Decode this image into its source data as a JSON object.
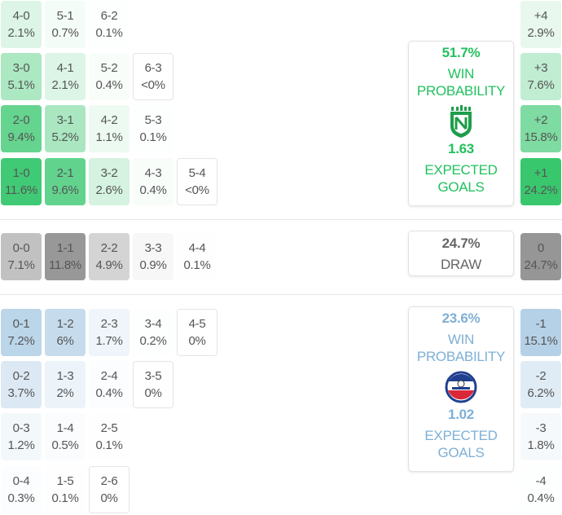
{
  "colors": {
    "home_accent": "#22c15e",
    "away_accent": "#7fb0d6",
    "draw_accent": "#666666"
  },
  "home": {
    "win_pct": "51.7%",
    "win_label_1": "WIN",
    "win_label_2": "PROBABILITY",
    "xg": "1.63",
    "xg_label_1": "EXPECTED",
    "xg_label_2": "GOALS",
    "logo_icon": "atletico-nacional-crest-icon"
  },
  "draw": {
    "pct": "24.7%",
    "label": "DRAW"
  },
  "away": {
    "win_pct": "23.6%",
    "win_label_1": "WIN",
    "win_label_2": "PROBABILITY",
    "xg": "1.02",
    "xg_label_1": "EXPECTED",
    "xg_label_2": "GOALS",
    "logo_icon": "alianza-club-crest-icon"
  },
  "home_rows": [
    [
      {
        "s": "4-0",
        "p": "2.1%"
      },
      {
        "s": "5-1",
        "p": "0.7%"
      },
      {
        "s": "6-2",
        "p": "0.1%"
      }
    ],
    [
      {
        "s": "3-0",
        "p": "5.1%"
      },
      {
        "s": "4-1",
        "p": "2.1%"
      },
      {
        "s": "5-2",
        "p": "0.4%"
      },
      {
        "s": "6-3",
        "p": "<0%"
      }
    ],
    [
      {
        "s": "2-0",
        "p": "9.4%"
      },
      {
        "s": "3-1",
        "p": "5.2%"
      },
      {
        "s": "4-2",
        "p": "1.1%"
      },
      {
        "s": "5-3",
        "p": "0.1%"
      }
    ],
    [
      {
        "s": "1-0",
        "p": "11.6%"
      },
      {
        "s": "2-1",
        "p": "9.6%"
      },
      {
        "s": "3-2",
        "p": "2.6%"
      },
      {
        "s": "4-3",
        "p": "0.4%"
      },
      {
        "s": "5-4",
        "p": "<0%"
      }
    ]
  ],
  "draw_row": [
    {
      "s": "0-0",
      "p": "7.1%"
    },
    {
      "s": "1-1",
      "p": "11.8%"
    },
    {
      "s": "2-2",
      "p": "4.9%"
    },
    {
      "s": "3-3",
      "p": "0.9%"
    },
    {
      "s": "4-4",
      "p": "0.1%"
    }
  ],
  "away_rows": [
    [
      {
        "s": "0-1",
        "p": "7.2%"
      },
      {
        "s": "1-2",
        "p": "6%"
      },
      {
        "s": "2-3",
        "p": "1.7%"
      },
      {
        "s": "3-4",
        "p": "0.2%"
      },
      {
        "s": "4-5",
        "p": "0%"
      }
    ],
    [
      {
        "s": "0-2",
        "p": "3.7%"
      },
      {
        "s": "1-3",
        "p": "2%"
      },
      {
        "s": "2-4",
        "p": "0.4%"
      },
      {
        "s": "3-5",
        "p": "0%"
      }
    ],
    [
      {
        "s": "0-3",
        "p": "1.2%"
      },
      {
        "s": "1-4",
        "p": "0.5%"
      },
      {
        "s": "2-5",
        "p": "0.1%"
      }
    ],
    [
      {
        "s": "0-4",
        "p": "0.3%"
      },
      {
        "s": "1-5",
        "p": "0.1%"
      },
      {
        "s": "2-6",
        "p": "0%"
      }
    ]
  ],
  "home_margins": [
    {
      "m": "+4",
      "p": "2.9%"
    },
    {
      "m": "+3",
      "p": "7.6%"
    },
    {
      "m": "+2",
      "p": "15.8%"
    },
    {
      "m": "+1",
      "p": "24.2%"
    }
  ],
  "draw_margin": {
    "m": "0",
    "p": "24.7%"
  },
  "away_margins": [
    {
      "m": "-1",
      "p": "15.1%"
    },
    {
      "m": "-2",
      "p": "6.2%"
    },
    {
      "m": "-3",
      "p": "1.8%"
    },
    {
      "m": "-4",
      "p": "0.4%"
    }
  ]
}
